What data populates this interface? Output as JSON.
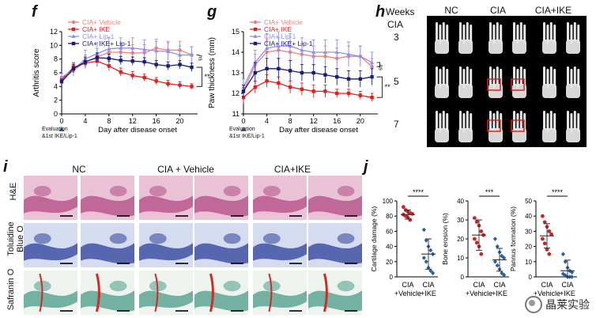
{
  "panels": {
    "f": "f",
    "g": "g",
    "h": "h",
    "i": "i",
    "j": "j"
  },
  "chart_data": [
    {
      "id": "f",
      "type": "line",
      "title": "",
      "xlabel": "Day after disease onset",
      "ylabel": "Arthritis score",
      "xlim": [
        0,
        23
      ],
      "ylim": [
        0,
        12
      ],
      "xticks": [
        0,
        4,
        8,
        12,
        16,
        20
      ],
      "yticks": [
        0,
        2,
        4,
        6,
        8,
        10,
        12
      ],
      "x": [
        0,
        2,
        4,
        6,
        8,
        10,
        12,
        14,
        16,
        18,
        20,
        22
      ],
      "series": [
        {
          "name": "CIA+ Vehicle",
          "color": "#f08080",
          "marker": "circle",
          "values": [
            5.0,
            6.3,
            7.6,
            8.3,
            9.0,
            9.0,
            8.9,
            8.9,
            9.6,
            9.3,
            9.3,
            8.6
          ],
          "err": [
            0.5,
            0.8,
            1.0,
            1.2,
            1.3,
            1.3,
            1.2,
            1.2,
            1.3,
            1.3,
            1.3,
            1.2
          ]
        },
        {
          "name": "CIA+ IKE",
          "color": "#e02020",
          "marker": "square",
          "values": [
            5.0,
            6.8,
            7.4,
            7.7,
            7.0,
            6.1,
            5.6,
            5.3,
            4.8,
            4.4,
            4.2,
            4.0
          ],
          "err": [
            0.4,
            0.6,
            0.7,
            0.8,
            0.7,
            0.6,
            0.6,
            0.5,
            0.5,
            0.5,
            0.5,
            0.4
          ]
        },
        {
          "name": "CIA+ Lip-1",
          "color": "#8f8ff0",
          "marker": "triangle",
          "values": [
            5.3,
            6.5,
            8.0,
            8.8,
            9.5,
            9.6,
            9.6,
            9.4,
            9.2,
            9.1,
            8.6,
            8.6
          ],
          "err": [
            0.6,
            1.0,
            1.3,
            1.6,
            1.6,
            1.5,
            1.5,
            1.4,
            1.4,
            1.3,
            1.3,
            1.2
          ]
        },
        {
          "name": "CIA+ IKE+ Lip-1",
          "color": "#1a1a7a",
          "marker": "square",
          "values": [
            4.7,
            6.6,
            7.6,
            8.2,
            8.1,
            7.8,
            7.7,
            7.6,
            7.2,
            7.0,
            7.2,
            6.8
          ],
          "err": [
            0.4,
            0.6,
            0.7,
            0.7,
            0.6,
            0.6,
            0.6,
            0.6,
            0.6,
            0.6,
            0.6,
            0.6
          ]
        }
      ],
      "annotations": [
        "ns",
        "**"
      ],
      "evaluation_label_1": "Evaluation",
      "evaluation_label_2": "&1st IKE/Lip-1"
    },
    {
      "id": "g",
      "type": "line",
      "title": "",
      "xlabel": "Day after disease onset",
      "ylabel": "Paw thickness (mm)",
      "xlim": [
        0,
        23
      ],
      "ylim": [
        11,
        15
      ],
      "xticks": [
        0,
        4,
        8,
        12,
        16,
        20
      ],
      "yticks": [
        11,
        12,
        13,
        14,
        15
      ],
      "x": [
        0,
        2,
        4,
        6,
        8,
        10,
        12,
        14,
        16,
        18,
        20,
        22
      ],
      "series": [
        {
          "name": "CIA+ Vehicle",
          "color": "#f08080",
          "marker": "circle",
          "values": [
            12.1,
            13.4,
            14.0,
            14.1,
            14.0,
            13.9,
            13.8,
            13.8,
            13.7,
            13.8,
            13.8,
            13.3
          ],
          "err": [
            0.3,
            0.5,
            0.6,
            0.6,
            0.5,
            0.5,
            0.5,
            0.5,
            0.5,
            0.5,
            0.5,
            0.4
          ]
        },
        {
          "name": "CIA+ IKE",
          "color": "#e02020",
          "marker": "square",
          "values": [
            11.8,
            12.3,
            12.6,
            12.5,
            12.3,
            12.2,
            12.1,
            12.1,
            12.0,
            12.0,
            11.9,
            11.8
          ],
          "err": [
            0.3,
            0.3,
            0.3,
            0.3,
            0.3,
            0.3,
            0.3,
            0.3,
            0.2,
            0.2,
            0.2,
            0.2
          ]
        },
        {
          "name": "CIA+ Lip-1",
          "color": "#8f8ff0",
          "marker": "triangle",
          "values": [
            12.3,
            13.5,
            14.2,
            14.3,
            14.3,
            14.1,
            14.0,
            14.0,
            14.0,
            13.9,
            13.8,
            13.5
          ],
          "err": [
            0.4,
            0.6,
            0.7,
            0.7,
            0.6,
            0.6,
            0.6,
            0.6,
            0.6,
            0.6,
            0.5,
            0.5
          ]
        },
        {
          "name": "CIA+ IKE+ Lip-1",
          "color": "#1a1a7a",
          "marker": "square",
          "values": [
            12.1,
            13.0,
            13.2,
            13.2,
            13.1,
            13.0,
            13.0,
            12.9,
            12.8,
            12.7,
            12.7,
            12.8
          ],
          "err": [
            0.3,
            0.5,
            0.5,
            0.5,
            0.5,
            0.4,
            0.4,
            0.4,
            0.4,
            0.4,
            0.4,
            0.4
          ]
        }
      ],
      "annotations": [
        "ns",
        "**"
      ],
      "evaluation_label_1": "Evaluation",
      "evaluation_label_2": "&1st IKE/Lip-1"
    },
    {
      "id": "j1",
      "type": "scatter",
      "ylabel": "Cartilage damage (%)",
      "ylim": [
        0,
        100
      ],
      "yticks": [
        0,
        20,
        40,
        60,
        80,
        100
      ],
      "categories": [
        "CIA\n+Vehicle",
        "CIA\n+IKE"
      ],
      "cat_line1": [
        "CIA",
        "CIA"
      ],
      "cat_line2": [
        "+Vehicle",
        "+IKE"
      ],
      "series": [
        {
          "name": "CIA+Vehicle",
          "color": "#c0282d",
          "mean": 82,
          "sd": 6,
          "values": [
            92,
            88,
            86,
            84,
            83,
            82,
            80,
            78,
            75
          ]
        },
        {
          "name": "CIA+IKE",
          "color": "#2a5f9e",
          "mean": 30,
          "sd": 20,
          "values": [
            62,
            48,
            40,
            35,
            30,
            25,
            20,
            12,
            8,
            5
          ]
        }
      ],
      "significance": "****"
    },
    {
      "id": "j2",
      "type": "scatter",
      "ylabel": "Bone erosion (%)",
      "ylim": [
        0,
        40
      ],
      "yticks": [
        0,
        10,
        20,
        30,
        40
      ],
      "categories": [
        "CIA\n+Vehicle",
        "CIA\n+IKE"
      ],
      "cat_line1": [
        "CIA",
        "CIA"
      ],
      "cat_line2": [
        "+Vehicle",
        "+IKE"
      ],
      "series": [
        {
          "name": "CIA+Vehicle",
          "color": "#c0282d",
          "mean": 22,
          "sd": 8,
          "values": [
            31,
            29,
            27,
            24,
            22,
            20,
            18,
            16,
            12
          ]
        },
        {
          "name": "CIA+IKE",
          "color": "#2a5f9e",
          "mean": 9,
          "sd": 6,
          "values": [
            20,
            16,
            13,
            11,
            10,
            8,
            6,
            4,
            2,
            1
          ]
        }
      ],
      "significance": "***"
    },
    {
      "id": "j3",
      "type": "scatter",
      "ylabel": "Pannus formation (%)",
      "ylim": [
        0,
        50
      ],
      "yticks": [
        0,
        10,
        20,
        30,
        40,
        50
      ],
      "categories": [
        "CIA\n+Vehicle",
        "CIA\n+IKE"
      ],
      "cat_line1": [
        "CIA",
        "CIA"
      ],
      "cat_line2": [
        "+Vehicle",
        "+IKE"
      ],
      "series": [
        {
          "name": "CIA+Vehicle",
          "color": "#c0282d",
          "mean": 27,
          "sd": 8,
          "values": [
            40,
            36,
            33,
            30,
            28,
            25,
            22,
            18,
            15
          ]
        },
        {
          "name": "CIA+IKE",
          "color": "#2a5f9e",
          "mean": 4,
          "sd": 7,
          "values": [
            15,
            10,
            6,
            4,
            3,
            2,
            1,
            0,
            0,
            0
          ]
        }
      ],
      "significance": "****"
    }
  ],
  "panel_h": {
    "weeks_label": "Weeks",
    "cia_label": "CIA",
    "weeks": [
      "3",
      "5",
      "7"
    ],
    "columns": [
      "NC",
      "CIA",
      "CIA+IKE"
    ]
  },
  "panel_i": {
    "columns": [
      "NC",
      "CIA + Vehicle",
      "CIA+IKE"
    ],
    "rows": [
      "H&E",
      "Toluidine Blue O",
      "Safranin O"
    ],
    "row_line1": [
      "H&E",
      "Toluidine",
      "Safranin O"
    ],
    "row_line2": [
      "",
      "Blue O",
      ""
    ],
    "colors": {
      "he_bg": "#e9c3d5",
      "he_tissue": "#b24a86",
      "tbo_bg": "#d6dcf0",
      "tbo_tissue": "#2b3f9a",
      "saf_bg": "#eef3ee",
      "saf_tissue": "#4a9c8a",
      "saf_red": "#cf2b2b"
    }
  },
  "watermark": {
    "text": "晶莱实验"
  }
}
